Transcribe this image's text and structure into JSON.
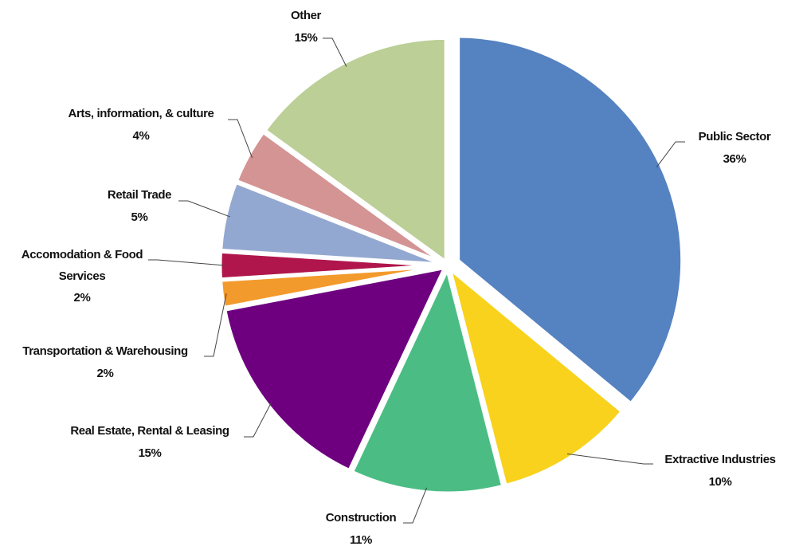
{
  "chart_data": {
    "type": "pie",
    "categories": [
      "Public Sector",
      "Extractive Industries",
      "Construction",
      "Real Estate, Rental & Leasing",
      "Transportation & Warehousing",
      "Accomodation & Food Services",
      "Retail Trade",
      "Arts, information, & culture",
      "Other"
    ],
    "values": [
      36,
      10,
      11,
      15,
      2,
      2,
      5,
      4,
      15
    ],
    "value_labels": [
      "36%",
      "10%",
      "11%",
      "15%",
      "2%",
      "2%",
      "5%",
      "4%",
      "15%"
    ],
    "colors": [
      "#5582c0",
      "#f8d21c",
      "#4bbd84",
      "#6e0080",
      "#f39a2c",
      "#b0164b",
      "#93a8d1",
      "#d49494",
      "#bbcf96"
    ]
  }
}
